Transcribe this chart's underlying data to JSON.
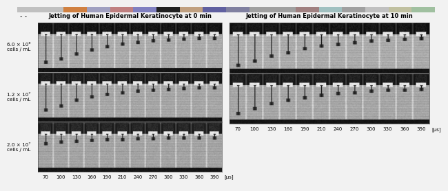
{
  "left_title": "Jetting of Human Epidermal Keratinocyte at 0 min",
  "right_title": "Jetting of Human Epidermal Keratinocyte at 10 min",
  "y_labels": [
    "6.0 × 10⁶\ncells / mL",
    "1.2 × 10⁷\ncells / mL",
    "2.0 × 10⁷\ncells / mL"
  ],
  "x_ticks": [
    70,
    100,
    130,
    160,
    190,
    210,
    240,
    270,
    300,
    330,
    360,
    390
  ],
  "x_unit": "[μs]",
  "n_frames": 12,
  "bg_color": "#f0f0f0",
  "title_fontsize": 6.0,
  "label_fontsize": 5.2,
  "tick_fontsize": 5.0,
  "jet_lengths_left_row0": [
    32,
    28,
    22,
    17,
    13,
    10,
    8,
    6,
    5,
    4,
    3,
    3
  ],
  "jet_lengths_left_row1": [
    30,
    25,
    18,
    14,
    11,
    9,
    7,
    6,
    5,
    4,
    3,
    3
  ],
  "jet_lengths_left_row2": [
    10,
    8,
    7,
    6,
    5,
    5,
    4,
    4,
    3,
    3,
    3,
    3
  ],
  "jet_lengths_right_row0": [
    35,
    30,
    24,
    20,
    15,
    12,
    10,
    8,
    6,
    5,
    4,
    3
  ],
  "jet_lengths_right_row1": [
    32,
    26,
    20,
    16,
    13,
    10,
    8,
    7,
    5,
    4,
    4,
    3
  ]
}
